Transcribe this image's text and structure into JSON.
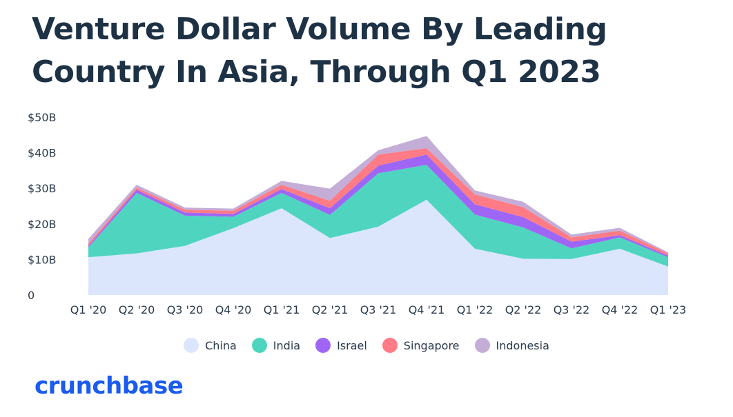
{
  "title": "Venture Dollar Volume By Leading Country In Asia, Through Q1 2023",
  "brand": "crunchbase",
  "colors": {
    "brand": "#1a5bf0",
    "title": "#1e3246"
  },
  "chart_data": {
    "type": "area",
    "stacked": true,
    "title": "Venture Dollar Volume By Leading Country In Asia, Through Q1 2023",
    "xlabel": "",
    "ylabel": "",
    "ylim": [
      0,
      50
    ],
    "yticks": [
      {
        "value": 0,
        "label": "0"
      },
      {
        "value": 10,
        "label": "$10B"
      },
      {
        "value": 20,
        "label": "$20B"
      },
      {
        "value": 30,
        "label": "$30B"
      },
      {
        "value": 40,
        "label": "$40B"
      },
      {
        "value": 50,
        "label": "$50B"
      }
    ],
    "categories": [
      "Q1 '20",
      "Q2 '20",
      "Q3 '20",
      "Q4 '20",
      "Q1 '21",
      "Q2 '21",
      "Q3 '21",
      "Q4 '21",
      "Q1 '22",
      "Q2 '22",
      "Q3 '22",
      "Q4 '22",
      "Q1 '23"
    ],
    "grid": false,
    "legend_position": "bottom",
    "series": [
      {
        "name": "China",
        "color": "#dbe6fd",
        "values": [
          10.6,
          11.7,
          13.8,
          18.8,
          24.4,
          16.0,
          19.2,
          26.8,
          13.0,
          10.2,
          10.1,
          13.0,
          8.0
        ]
      },
      {
        "name": "India",
        "color": "#4fd5bf",
        "values": [
          2.8,
          17.0,
          8.5,
          3.2,
          4.3,
          6.5,
          15.0,
          9.8,
          9.6,
          8.8,
          3.0,
          3.2,
          2.6
        ]
      },
      {
        "name": "Israel",
        "color": "#9f66f5",
        "values": [
          0.4,
          0.9,
          0.9,
          0.8,
          1.1,
          1.9,
          2.2,
          2.9,
          2.9,
          2.9,
          1.9,
          0.6,
          0.5
        ]
      },
      {
        "name": "Singapore",
        "color": "#ff7b85",
        "values": [
          0.7,
          0.6,
          0.8,
          0.9,
          1.2,
          2.1,
          3.1,
          1.8,
          2.8,
          2.8,
          1.2,
          1.3,
          0.6
        ]
      },
      {
        "name": "Indonesia",
        "color": "#c4aed7",
        "values": [
          1.3,
          0.8,
          0.6,
          0.6,
          1.1,
          3.4,
          1.2,
          3.4,
          1.1,
          1.5,
          0.8,
          0.8,
          0.3
        ]
      }
    ]
  }
}
